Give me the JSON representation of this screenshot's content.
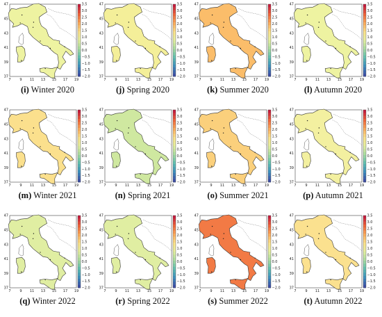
{
  "figure": {
    "x_ticks": [
      "7",
      "9",
      "11",
      "13",
      "15",
      "17",
      "19"
    ],
    "y_ticks": [
      "47",
      "45",
      "43",
      "41",
      "39",
      "37"
    ],
    "colorbar_ticks": [
      "3.5",
      "3.0",
      "2.5",
      "2.0",
      "1.5",
      "1.0",
      "0.5",
      "0.0",
      "−0.5",
      "−1.0",
      "−1.5",
      "−2.0"
    ],
    "colorbar_range": [
      -2.0,
      3.5
    ],
    "colorscale": [
      "#3d4fa6",
      "#3b8fbf",
      "#5ec0b0",
      "#a8dca0",
      "#e6f1a0",
      "#fde28a",
      "#fca95a",
      "#ef6339",
      "#c61d3d"
    ],
    "panels": [
      {
        "label": "(i)",
        "title": "Winter 2020",
        "fill": "#eef3a1",
        "level": 0.42
      },
      {
        "label": "(j)",
        "title": "Spring 2020",
        "fill": "#f4ef99",
        "level": 0.45
      },
      {
        "label": "(k)",
        "title": "Summer 2020",
        "fill": "#fbbd6a",
        "level": 0.62
      },
      {
        "label": "(l)",
        "title": "Autumn 2020",
        "fill": "#eef3a1",
        "level": 0.42
      },
      {
        "label": "(m)",
        "title": "Winter 2021",
        "fill": "#fbe08d",
        "level": 0.52
      },
      {
        "label": "(n)",
        "title": "Spring 2021",
        "fill": "#cfe8a0",
        "level": 0.36
      },
      {
        "label": "(o)",
        "title": "Summer 2021",
        "fill": "#fbd07c",
        "level": 0.58
      },
      {
        "label": "(p)",
        "title": "Autumn 2021",
        "fill": "#f3f0a0",
        "level": 0.44
      },
      {
        "label": "(q)",
        "title": "Winter 2022",
        "fill": "#e0eea2",
        "level": 0.4
      },
      {
        "label": "(r)",
        "title": "Spring 2022",
        "fill": "#e0eea2",
        "level": 0.4
      },
      {
        "label": "(s)",
        "title": "Summer 2022",
        "fill": "#f27a45",
        "level": 0.78
      },
      {
        "label": "(t)",
        "title": "Autumn 2022",
        "fill": "#fbe18f",
        "level": 0.5
      }
    ]
  }
}
